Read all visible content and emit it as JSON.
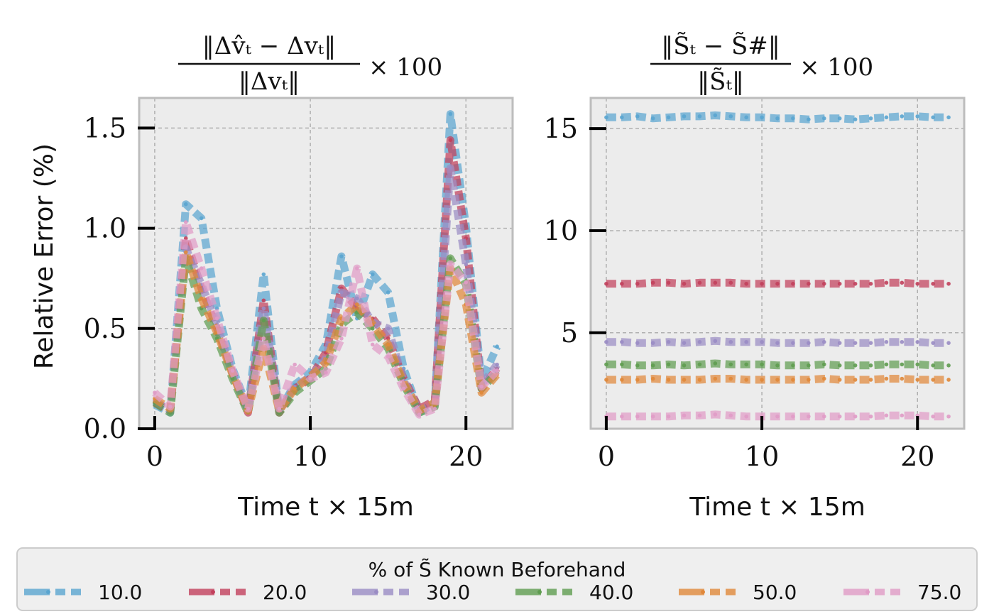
{
  "chart_data": [
    {
      "type": "line",
      "title": "‖Δv̂ₜ − Δvₜ‖ / ‖Δvₜ‖ × 100",
      "title_parts": {
        "numerator": "‖Δv̂ₜ − Δvₜ‖",
        "denominator": "‖Δvₜ‖",
        "suffix": "× 100"
      },
      "xlabel": "Time t × 15m",
      "ylabel": "Relative Error (%)",
      "xlim": [
        -1,
        23
      ],
      "ylim": [
        0,
        1.65
      ],
      "xticks": [
        0,
        10,
        20
      ],
      "yticks": [
        0.0,
        0.5,
        1.0,
        1.5
      ],
      "xtick_labels": [
        "0",
        "10",
        "20"
      ],
      "ytick_labels": [
        "0.0",
        "0.5",
        "1.0",
        "1.5"
      ],
      "grid": true,
      "x": [
        0,
        1,
        2,
        3,
        4,
        5,
        6,
        7,
        8,
        9,
        10,
        11,
        12,
        13,
        14,
        15,
        16,
        17,
        18,
        19,
        20,
        21,
        22
      ],
      "series": [
        {
          "name": "10.0",
          "values": [
            0.12,
            0.08,
            1.12,
            1.05,
            0.6,
            0.3,
            0.1,
            0.77,
            0.09,
            0.22,
            0.28,
            0.42,
            0.86,
            0.55,
            0.77,
            0.68,
            0.3,
            0.08,
            0.13,
            1.57,
            1.01,
            0.24,
            0.41
          ]
        },
        {
          "name": "20.0",
          "values": [
            0.13,
            0.09,
            0.95,
            0.7,
            0.5,
            0.28,
            0.08,
            0.64,
            0.08,
            0.2,
            0.25,
            0.38,
            0.7,
            0.6,
            0.55,
            0.45,
            0.25,
            0.1,
            0.14,
            1.44,
            0.95,
            0.2,
            0.3
          ]
        },
        {
          "name": "30.0",
          "values": [
            0.14,
            0.09,
            0.9,
            0.72,
            0.52,
            0.27,
            0.09,
            0.6,
            0.09,
            0.21,
            0.26,
            0.35,
            0.68,
            0.65,
            0.53,
            0.5,
            0.24,
            0.09,
            0.12,
            1.3,
            0.82,
            0.22,
            0.32
          ]
        },
        {
          "name": "40.0",
          "values": [
            0.13,
            0.08,
            0.85,
            0.6,
            0.45,
            0.25,
            0.08,
            0.54,
            0.08,
            0.18,
            0.24,
            0.3,
            0.52,
            0.58,
            0.5,
            0.4,
            0.22,
            0.08,
            0.11,
            0.85,
            0.72,
            0.2,
            0.28
          ]
        },
        {
          "name": "50.0",
          "values": [
            0.15,
            0.1,
            0.88,
            0.65,
            0.48,
            0.27,
            0.09,
            0.4,
            0.09,
            0.2,
            0.26,
            0.33,
            0.55,
            0.62,
            0.52,
            0.42,
            0.23,
            0.09,
            0.13,
            0.8,
            0.62,
            0.18,
            0.27
          ]
        },
        {
          "name": "75.0",
          "values": [
            0.18,
            0.11,
            1.03,
            0.8,
            0.55,
            0.29,
            0.1,
            0.45,
            0.1,
            0.32,
            0.25,
            0.28,
            0.45,
            0.8,
            0.42,
            0.36,
            0.2,
            0.07,
            0.1,
            0.82,
            0.73,
            0.21,
            0.29
          ]
        }
      ]
    },
    {
      "type": "line",
      "title": "‖S̃ₜ − S̃#‖ / ‖S̃ₜ‖ × 100",
      "title_parts": {
        "numerator": "‖S̃ₜ − S̃#‖",
        "denominator": "‖S̃ₜ‖",
        "suffix": "× 100"
      },
      "xlabel": "Time t × 15m",
      "ylabel": "",
      "xlim": [
        -1,
        23
      ],
      "ylim": [
        0.3,
        16.5
      ],
      "xticks": [
        0,
        10,
        20
      ],
      "yticks": [
        5,
        10,
        15
      ],
      "xtick_labels": [
        "0",
        "10",
        "20"
      ],
      "ytick_labels": [
        "5",
        "10",
        "15"
      ],
      "grid": true,
      "x": [
        0,
        1,
        2,
        3,
        4,
        5,
        6,
        7,
        8,
        9,
        10,
        11,
        12,
        13,
        14,
        15,
        16,
        17,
        18,
        19,
        20,
        21,
        22
      ],
      "series": [
        {
          "name": "10.0",
          "values": [
            15.55,
            15.55,
            15.6,
            15.5,
            15.55,
            15.6,
            15.6,
            15.65,
            15.6,
            15.55,
            15.55,
            15.5,
            15.5,
            15.45,
            15.5,
            15.5,
            15.45,
            15.5,
            15.55,
            15.6,
            15.6,
            15.55,
            15.55
          ]
        },
        {
          "name": "20.0",
          "values": [
            7.4,
            7.4,
            7.4,
            7.45,
            7.45,
            7.4,
            7.45,
            7.45,
            7.45,
            7.4,
            7.4,
            7.4,
            7.4,
            7.4,
            7.4,
            7.4,
            7.4,
            7.4,
            7.45,
            7.45,
            7.4,
            7.4,
            7.4
          ]
        },
        {
          "name": "30.0",
          "values": [
            4.55,
            4.55,
            4.5,
            4.5,
            4.55,
            4.5,
            4.55,
            4.6,
            4.55,
            4.55,
            4.55,
            4.5,
            4.5,
            4.5,
            4.55,
            4.5,
            4.5,
            4.5,
            4.55,
            4.55,
            4.55,
            4.5,
            4.5
          ]
        },
        {
          "name": "40.0",
          "values": [
            3.45,
            3.45,
            3.4,
            3.4,
            3.45,
            3.4,
            3.45,
            3.5,
            3.45,
            3.45,
            3.45,
            3.4,
            3.4,
            3.4,
            3.45,
            3.4,
            3.4,
            3.4,
            3.45,
            3.45,
            3.45,
            3.4,
            3.4
          ]
        },
        {
          "name": "50.0",
          "values": [
            2.7,
            2.7,
            2.7,
            2.75,
            2.7,
            2.7,
            2.7,
            2.75,
            2.75,
            2.7,
            2.7,
            2.7,
            2.7,
            2.7,
            2.75,
            2.7,
            2.7,
            2.7,
            2.75,
            2.75,
            2.7,
            2.7,
            2.7
          ]
        },
        {
          "name": "75.0",
          "values": [
            0.9,
            0.9,
            0.9,
            0.9,
            0.9,
            0.95,
            0.95,
            1.0,
            0.95,
            0.9,
            0.9,
            0.9,
            0.9,
            0.9,
            0.9,
            0.9,
            0.9,
            0.9,
            0.95,
            0.95,
            0.95,
            0.9,
            0.9
          ]
        }
      ]
    }
  ],
  "series_colors": [
    "#5aa5d0",
    "#c2405c",
    "#9a8cc4",
    "#5f9c50",
    "#e0883a",
    "#e09bc6"
  ],
  "legend": {
    "title": "% of S̃ Known Beforehand",
    "placement": "bottom",
    "entries": [
      "10.0",
      "20.0",
      "30.0",
      "40.0",
      "50.0",
      "75.0"
    ]
  }
}
